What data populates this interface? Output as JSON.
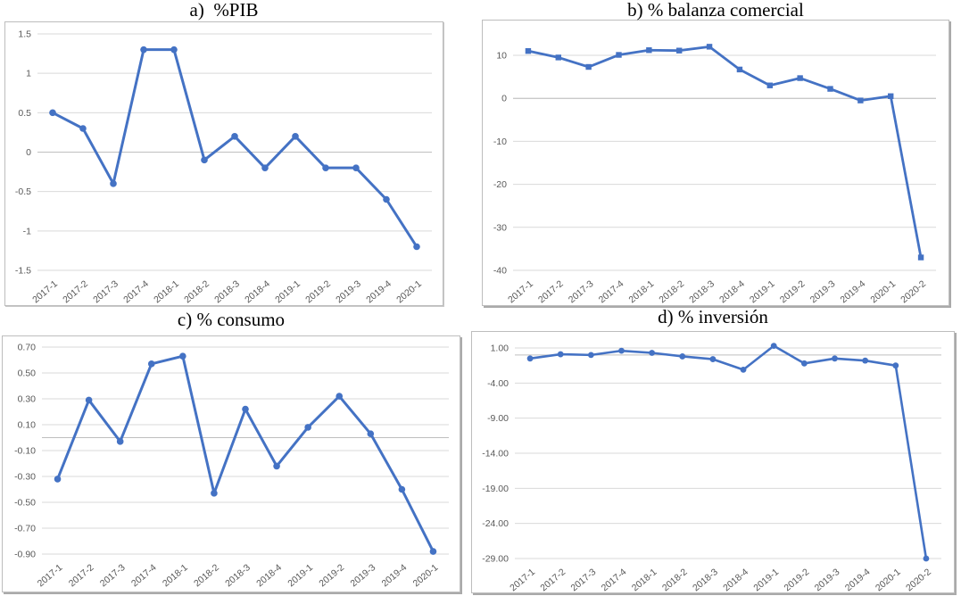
{
  "figure": {
    "description": "Four quarterly macroeconomic line charts",
    "background_color": "#ffffff",
    "accent_color": "#4472C4",
    "gridline_color": "#D9D9D9",
    "axis_line_color": "#BFBFBF",
    "tick_label_color": "#595959",
    "title_color": "#000000"
  },
  "chart_data": [
    {
      "type": "line",
      "panel": "a",
      "title": "a)  %PIB",
      "xlabel": "",
      "ylabel": "",
      "legend": "none",
      "grid": "horizontal",
      "categories": [
        "2017-1",
        "2017-2",
        "2017-3",
        "2017-4",
        "2018-1",
        "2018-2",
        "2018-3",
        "2018-4",
        "2019-1",
        "2019-2",
        "2019-3",
        "2019-4",
        "2020-1"
      ],
      "values": [
        0.5,
        0.3,
        -0.4,
        1.3,
        1.3,
        -0.1,
        0.2,
        -0.2,
        0.2,
        -0.2,
        -0.2,
        -0.6,
        -1.2
      ],
      "ylim": [
        -1.5,
        1.5
      ],
      "ytick_values": [
        1.5,
        1,
        0.5,
        0,
        -0.5,
        -1,
        -1.5
      ],
      "ytick_labels": [
        "1.5",
        "1",
        "0.5",
        "0",
        "-0.5",
        "-1",
        "-1.5"
      ],
      "line_color": "#4472C4",
      "gridline_color": "#D9D9D9",
      "axis_color": "#BFBFBF"
    },
    {
      "type": "line",
      "panel": "b",
      "title": "b) % balanza comercial",
      "xlabel": "",
      "ylabel": "",
      "legend": "none",
      "grid": "horizontal",
      "categories": [
        "2017-1",
        "2017-2",
        "2017-3",
        "2017-4",
        "2018-1",
        "2018-2",
        "2018-3",
        "2018-4",
        "2019-1",
        "2019-2",
        "2019-3",
        "2019-4",
        "2020-1",
        "2020-2"
      ],
      "values": [
        11,
        9.5,
        7.3,
        10.1,
        11.2,
        11.1,
        12,
        6.7,
        3,
        4.7,
        2.2,
        -0.5,
        0.5,
        -37
      ],
      "ylim": [
        -40,
        10
      ],
      "ytick_values": [
        10,
        0,
        -10,
        -20,
        -30,
        -40
      ],
      "ytick_labels": [
        "10",
        "0",
        "-10",
        "-20",
        "-30",
        "-40"
      ],
      "line_color": "#4472C4",
      "gridline_color": "#D9D9D9",
      "axis_color": "#BFBFBF"
    },
    {
      "type": "line",
      "panel": "c",
      "title": "c) % consumo",
      "xlabel": "",
      "ylabel": "",
      "legend": "none",
      "grid": "horizontal",
      "categories": [
        "2017-1",
        "2017-2",
        "2017-3",
        "2017-4",
        "2018-1",
        "2018-2",
        "2018-3",
        "2018-4",
        "2019-1",
        "2019-2",
        "2019-3",
        "2019-4",
        "2020-1"
      ],
      "values": [
        -0.32,
        0.29,
        -0.03,
        0.57,
        0.63,
        -0.43,
        0.22,
        -0.22,
        0.08,
        0.32,
        0.03,
        -0.4,
        -0.88
      ],
      "ylim": [
        -0.9,
        0.7
      ],
      "ytick_values": [
        0.7,
        0.5,
        0.3,
        0.1,
        -0.1,
        -0.3,
        -0.5,
        -0.7,
        -0.9
      ],
      "ytick_labels": [
        "0.70",
        "0.50",
        "0.30",
        "0.10",
        "-0.10",
        "-0.30",
        "-0.50",
        "-0.70",
        "-0.90"
      ],
      "line_color": "#4472C4",
      "gridline_color": "#D9D9D9",
      "axis_color": "#BFBFBF"
    },
    {
      "type": "line",
      "panel": "d",
      "title": "d) % inversión",
      "xlabel": "",
      "ylabel": "",
      "legend": "none",
      "grid": "horizontal",
      "categories": [
        "2017-1",
        "2017-2",
        "2017-3",
        "2017-4",
        "2018-1",
        "2018-2",
        "2018-3",
        "2018-4",
        "2019-1",
        "2019-2",
        "2019-3",
        "2019-4",
        "2020-1",
        "2020-2"
      ],
      "values": [
        -0.5,
        0.1,
        0.0,
        0.6,
        0.3,
        -0.2,
        -0.6,
        -2.1,
        1.3,
        -1.2,
        -0.5,
        -0.8,
        -1.5,
        -29.0
      ],
      "ylim": [
        -29,
        1
      ],
      "ytick_values": [
        1,
        -4,
        -9,
        -14,
        -19,
        -24,
        -29
      ],
      "ytick_labels": [
        "1.00",
        "-4.00",
        "-9.00",
        "-14.00",
        "-19.00",
        "-24.00",
        "-29.00"
      ],
      "line_color": "#4472C4",
      "gridline_color": "#D9D9D9",
      "axis_color": "#BFBFBF"
    }
  ]
}
